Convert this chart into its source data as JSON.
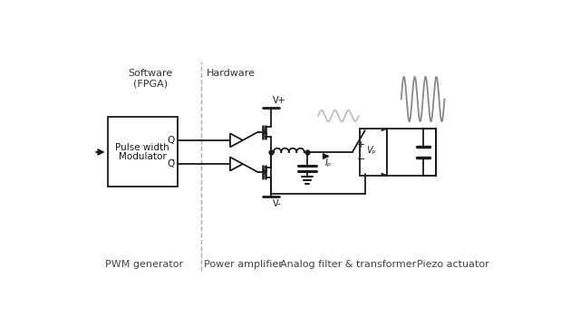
{
  "bg_color": "#ffffff",
  "lc": "#1a1a1a",
  "gray_sine": "#aaaaaa",
  "gray_piezo_sine": "#888888",
  "figsize": [
    6.4,
    3.6
  ],
  "dpi": 100,
  "label_software": "Software\n(FPGA)",
  "label_hardware": "Hardware",
  "label_pwm": "PWM generator",
  "label_amp": "Power amplifier",
  "label_filter": "Analog filter & transformer",
  "label_piezo": "Piezo actuator",
  "label_vplus": "V+",
  "label_vminus": "V-",
  "label_Q": "Q",
  "label_Qbar": "Q̅",
  "label_Ip": "Iₚ",
  "label_Vp": "Vₚ"
}
